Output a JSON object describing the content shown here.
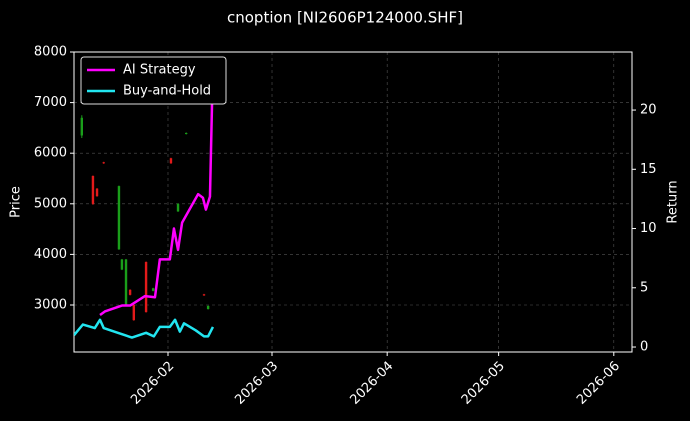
{
  "chart_data": {
    "type": "candlestick",
    "title": "cnoption [NI2606P124000.SHF]",
    "ylabel": "Price",
    "y2label": "Return",
    "xlim": [
      6.7,
      156.9
    ],
    "xticks": [
      {
        "value": 32,
        "label": "2026-02"
      },
      {
        "value": 60,
        "label": "2026-03"
      },
      {
        "value": 91,
        "label": "2026-04"
      },
      {
        "value": 121,
        "label": "2026-05"
      },
      {
        "value": 152,
        "label": "2026-06"
      }
    ],
    "ylim": [
      2071,
      8000
    ],
    "yticks": [
      3000,
      4000,
      5000,
      6000,
      7000,
      8000
    ],
    "y2lim": [
      -0.42,
      24.9
    ],
    "y2ticks": [
      0,
      5,
      10,
      15,
      20
    ],
    "grid": true,
    "legend": "upper left",
    "up_color": "#1a9e1a",
    "down_color": "#e31a1a",
    "candles": {
      "x": [
        8.8,
        11.8,
        12.9,
        14.7,
        18.8,
        19.6,
        20.7,
        21.8,
        22.8,
        26.1,
        28.0,
        32.8,
        34.7,
        36.9,
        41.7,
        42.8
      ],
      "open": [
        6350,
        5550,
        5300,
        5820,
        4100,
        3700,
        3000,
        3300,
        3000,
        3850,
        3280,
        5900,
        4850,
        6380,
        3210,
        2920
      ],
      "high": [
        6750,
        5560,
        5310,
        5830,
        5360,
        3910,
        3910,
        3310,
        3010,
        3860,
        3340,
        5910,
        5010,
        6410,
        3220,
        2990
      ],
      "low": [
        6300,
        4980,
        5140,
        5790,
        4090,
        3690,
        2990,
        3190,
        2690,
        2850,
        3270,
        5790,
        4840,
        6370,
        3180,
        2910
      ],
      "close": [
        6700,
        5000,
        5150,
        5800,
        5350,
        3900,
        3900,
        3200,
        2700,
        2860,
        3330,
        5800,
        5000,
        6400,
        3190,
        2980
      ]
    },
    "series": [
      {
        "name": "AI Strategy",
        "color": "#ff00ff",
        "axis": "y2",
        "x": [
          13.7,
          15.0,
          19.6,
          21.8,
          25.8,
          28.5,
          29.8,
          32.5,
          33.6,
          34.7,
          35.8,
          40.1,
          41.4,
          42.2,
          43.3,
          44.1
        ],
        "values": [
          2.7,
          3.0,
          3.5,
          3.5,
          4.3,
          4.2,
          7.4,
          7.4,
          10.0,
          8.2,
          10.5,
          12.9,
          12.6,
          11.6,
          12.7,
          24.0
        ]
      },
      {
        "name": "Buy-and-Hold",
        "color": "#22e5f0",
        "axis": "y2",
        "x": [
          6.7,
          9.1,
          12.3,
          13.7,
          14.7,
          18.5,
          22.3,
          26.1,
          28.2,
          29.8,
          32.5,
          33.9,
          35.2,
          36.3,
          39.5,
          41.7,
          42.8,
          44.1
        ],
        "values": [
          1.0,
          1.9,
          1.6,
          2.3,
          1.6,
          1.2,
          0.8,
          1.2,
          0.9,
          1.7,
          1.7,
          2.3,
          1.3,
          2.0,
          1.4,
          0.9,
          0.9,
          1.7
        ]
      }
    ]
  }
}
